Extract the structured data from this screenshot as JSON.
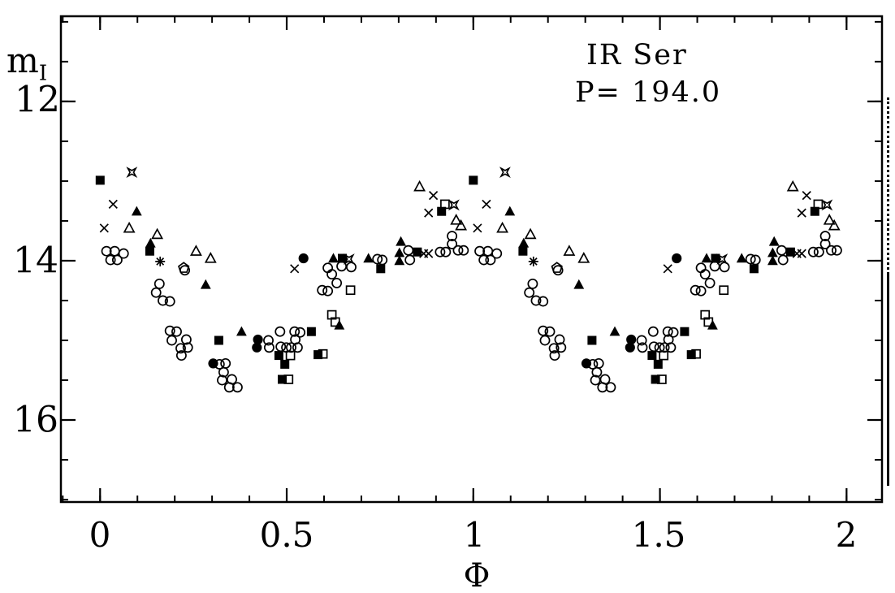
{
  "chart_data": {
    "type": "scatter",
    "title": "IR Ser",
    "period_label": "P= 194.0",
    "xlabel": "Φ",
    "ylabel": "m_I",
    "ylabel_main": "m",
    "ylabel_sub": "I",
    "x_axis": {
      "lim": [
        -0.105,
        2.095
      ],
      "ticks_major": [
        0,
        0.5,
        1,
        1.5,
        2
      ],
      "tick_labels": [
        "0",
        "0.5",
        "1",
        "1.5",
        "2"
      ],
      "minor_step": 0.1
    },
    "y_axis": {
      "lim_top_mag": 10.93,
      "lim_bottom_mag": 17.03,
      "inverted": true,
      "ticks_major": [
        12,
        14,
        16
      ],
      "tick_labels": [
        "12",
        "14",
        "16"
      ],
      "minor_step": 0.5
    },
    "grid": false,
    "legend": "none",
    "plotted_twice": true,
    "note": "Phased light curve; each point [phase, I-magnitude] is plotted at phase and phase+1",
    "ink_color": "#000000",
    "background_color": "#ffffff",
    "series": [
      {
        "name": "open-circle",
        "marker": "circle_open",
        "points": [
          [
            0.017,
            13.88
          ],
          [
            0.039,
            13.88
          ],
          [
            0.028,
            13.99
          ],
          [
            0.046,
            13.99
          ],
          [
            0.063,
            13.91
          ],
          [
            0.227,
            14.12
          ],
          [
            0.159,
            14.29
          ],
          [
            0.15,
            14.4
          ],
          [
            0.168,
            14.5
          ],
          [
            0.187,
            14.51
          ],
          [
            0.187,
            14.88
          ],
          [
            0.205,
            14.89
          ],
          [
            0.192,
            15.0
          ],
          [
            0.231,
            14.99
          ],
          [
            0.216,
            15.1
          ],
          [
            0.235,
            15.09
          ],
          [
            0.218,
            15.19
          ],
          [
            0.32,
            15.3
          ],
          [
            0.336,
            15.29
          ],
          [
            0.331,
            15.4
          ],
          [
            0.327,
            15.5
          ],
          [
            0.353,
            15.49
          ],
          [
            0.346,
            15.59
          ],
          [
            0.368,
            15.59
          ],
          [
            0.451,
            15.0
          ],
          [
            0.453,
            15.09
          ],
          [
            0.484,
            15.08
          ],
          [
            0.499,
            15.09
          ],
          [
            0.512,
            15.09
          ],
          [
            0.529,
            15.09
          ],
          [
            0.482,
            14.89
          ],
          [
            0.521,
            14.89
          ],
          [
            0.536,
            14.9
          ],
          [
            0.523,
            14.99
          ],
          [
            0.61,
            14.09
          ],
          [
            0.647,
            14.07
          ],
          [
            0.673,
            14.08
          ],
          [
            0.621,
            14.17
          ],
          [
            0.634,
            14.28
          ],
          [
            0.595,
            14.37
          ],
          [
            0.61,
            14.38
          ],
          [
            0.743,
            13.98
          ],
          [
            0.756,
            13.99
          ],
          [
            0.826,
            13.87
          ],
          [
            0.83,
            13.99
          ],
          [
            0.911,
            13.89
          ],
          [
            0.926,
            13.89
          ],
          [
            0.959,
            13.87
          ],
          [
            0.974,
            13.87
          ],
          [
            0.943,
            13.69
          ],
          [
            0.943,
            13.79
          ]
        ]
      },
      {
        "name": "filled-circle",
        "marker": "circle_filled",
        "points": [
          [
            0.545,
            13.97
          ],
          [
            0.303,
            15.29
          ],
          [
            0.423,
            14.99
          ],
          [
            0.42,
            15.09
          ]
        ]
      },
      {
        "name": "open-square",
        "marker": "square_open",
        "points": [
          [
            0.51,
            15.19
          ],
          [
            0.597,
            15.17
          ],
          [
            0.621,
            14.68
          ],
          [
            0.63,
            14.77
          ],
          [
            0.671,
            14.37
          ],
          [
            0.924,
            13.29
          ],
          [
            0.505,
            15.49
          ]
        ]
      },
      {
        "name": "filled-square",
        "marker": "square_filled",
        "points": [
          [
            0.0,
            12.99
          ],
          [
            0.133,
            13.88
          ],
          [
            0.915,
            13.38
          ],
          [
            0.649,
            13.97
          ],
          [
            0.85,
            13.89
          ],
          [
            0.752,
            14.1
          ],
          [
            0.566,
            14.89
          ],
          [
            0.318,
            15.0
          ],
          [
            0.479,
            15.19
          ],
          [
            0.495,
            15.3
          ],
          [
            0.488,
            15.49
          ],
          [
            0.584,
            15.18
          ]
        ]
      },
      {
        "name": "open-triangle",
        "marker": "triangle_open",
        "points": [
          [
            0.078,
            13.59
          ],
          [
            0.153,
            13.67
          ],
          [
            0.257,
            13.88
          ],
          [
            0.296,
            13.97
          ],
          [
            0.856,
            13.07
          ],
          [
            0.954,
            13.49
          ],
          [
            0.967,
            13.56
          ]
        ]
      },
      {
        "name": "filled-triangle",
        "marker": "triangle_filled",
        "points": [
          [
            0.098,
            13.38
          ],
          [
            0.135,
            13.78
          ],
          [
            0.283,
            14.3
          ],
          [
            0.379,
            14.89
          ],
          [
            0.625,
            13.97
          ],
          [
            0.641,
            14.81
          ],
          [
            0.719,
            13.97
          ],
          [
            0.806,
            13.76
          ],
          [
            0.802,
            13.9
          ],
          [
            0.802,
            14.0
          ]
        ]
      },
      {
        "name": "cross",
        "marker": "cross",
        "points": [
          [
            0.035,
            13.29
          ],
          [
            0.011,
            13.59
          ],
          [
            0.521,
            14.1
          ],
          [
            0.867,
            13.91
          ],
          [
            0.88,
            13.91
          ],
          [
            0.893,
            13.18
          ],
          [
            0.88,
            13.4
          ]
        ]
      },
      {
        "name": "asterisk",
        "marker": "asterisk",
        "points": [
          [
            0.161,
            14.01
          ]
        ]
      },
      {
        "name": "open-pentagon",
        "marker": "pentagon_open",
        "points": [
          [
            0.224,
            14.09
          ]
        ]
      },
      {
        "name": "four-point-star",
        "marker": "star4_open",
        "points": [
          [
            0.085,
            12.89
          ],
          [
            0.667,
            13.98
          ],
          [
            0.948,
            13.3
          ]
        ]
      }
    ]
  }
}
